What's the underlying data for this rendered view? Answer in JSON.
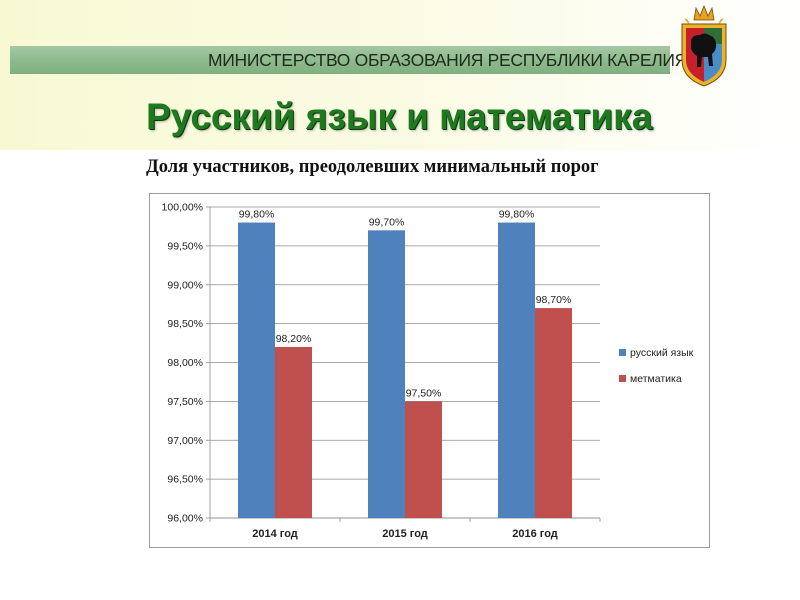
{
  "header": {
    "ministry": "МИНИСТЕРСТВО ОБРАЗОВАНИЯ РЕСПУБЛИКИ КАРЕЛИЯ",
    "title": "Русский язык и математика",
    "subtitle": "Доля участников, преодолевших минимальный порог"
  },
  "colors": {
    "series_1": "#4f81bd",
    "series_2": "#c0504d",
    "title_green": "#1f7a1f",
    "ministry_bar": "#8fbb8e"
  },
  "emblem": {
    "icon": "karelia-coat-of-arms-icon"
  },
  "chart_data": {
    "type": "bar",
    "categories": [
      "2014 год",
      "2015 год",
      "2016 год"
    ],
    "series": [
      {
        "name": "русский язык",
        "values": [
          99.8,
          99.7,
          99.8
        ],
        "labels": [
          "99,80%",
          "99,70%",
          "99,80%"
        ],
        "color": "#4f81bd"
      },
      {
        "name": "метматика",
        "values": [
          98.2,
          97.5,
          98.7
        ],
        "labels": [
          "98,20%",
          "97,50%",
          "98,70%"
        ],
        "color": "#c0504d"
      }
    ],
    "ylim": [
      96.0,
      100.0
    ],
    "yticks": [
      96.0,
      96.5,
      97.0,
      97.5,
      98.0,
      98.5,
      99.0,
      99.5,
      100.0
    ],
    "ytick_labels": [
      "96,00%",
      "96,50%",
      "97,00%",
      "97,50%",
      "98,00%",
      "98,50%",
      "99,00%",
      "99,50%",
      "100,00%"
    ],
    "grid": true,
    "legend": "right",
    "title": "",
    "xlabel": "",
    "ylabel": ""
  }
}
